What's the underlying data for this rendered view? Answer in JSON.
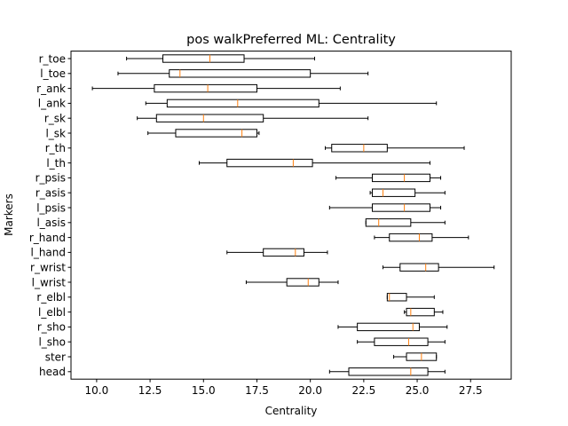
{
  "chart_data": {
    "type": "boxplot",
    "orientation": "horizontal",
    "title": "pos walkPreferred ML: Centrality",
    "xlabel": "Centrality",
    "ylabel": "Markers",
    "xlim": [
      8.8,
      29.4
    ],
    "xticks": [
      "10.0",
      "12.5",
      "15.0",
      "17.5",
      "20.0",
      "22.5",
      "25.0",
      "27.5"
    ],
    "grid": false,
    "box_color": "#000000",
    "median_color": "#ff7f0e",
    "categories": [
      "head",
      "ster",
      "l_sho",
      "r_sho",
      "l_elbl",
      "r_elbl",
      "l_wrist",
      "r_wrist",
      "l_hand",
      "r_hand",
      "l_asis",
      "l_psis",
      "r_asis",
      "r_psis",
      "l_th",
      "r_th",
      "l_sk",
      "r_sk",
      "l_ank",
      "r_ank",
      "l_toe",
      "r_toe"
    ],
    "series": [
      {
        "category": "head",
        "whislo": 20.9,
        "q1": 21.8,
        "med": 24.7,
        "q3": 25.5,
        "whishi": 26.3
      },
      {
        "category": "ster",
        "whislo": 23.9,
        "q1": 24.5,
        "med": 25.2,
        "q3": 25.9,
        "whishi": 25.9
      },
      {
        "category": "l_sho",
        "whislo": 22.2,
        "q1": 23.0,
        "med": 24.6,
        "q3": 25.5,
        "whishi": 26.3
      },
      {
        "category": "r_sho",
        "whislo": 21.3,
        "q1": 22.2,
        "med": 24.8,
        "q3": 25.1,
        "whishi": 26.4
      },
      {
        "category": "l_elbl",
        "whislo": 24.4,
        "q1": 24.5,
        "med": 24.7,
        "q3": 25.8,
        "whishi": 26.2
      },
      {
        "category": "r_elbl",
        "whislo": 23.6,
        "q1": 23.6,
        "med": 23.7,
        "q3": 24.5,
        "whishi": 25.8
      },
      {
        "category": "l_wrist",
        "whislo": 17.0,
        "q1": 18.9,
        "med": 19.9,
        "q3": 20.4,
        "whishi": 21.3
      },
      {
        "category": "r_wrist",
        "whislo": 23.4,
        "q1": 24.2,
        "med": 25.4,
        "q3": 26.0,
        "whishi": 28.6
      },
      {
        "category": "l_hand",
        "whislo": 16.1,
        "q1": 17.8,
        "med": 19.3,
        "q3": 19.7,
        "whishi": 20.8
      },
      {
        "category": "r_hand",
        "whislo": 23.0,
        "q1": 23.7,
        "med": 25.1,
        "q3": 25.7,
        "whishi": 27.4
      },
      {
        "category": "l_asis",
        "whislo": 22.6,
        "q1": 22.6,
        "med": 23.2,
        "q3": 24.7,
        "whishi": 26.3
      },
      {
        "category": "l_psis",
        "whislo": 20.9,
        "q1": 22.9,
        "med": 24.4,
        "q3": 25.6,
        "whishi": 26.1
      },
      {
        "category": "r_asis",
        "whislo": 22.8,
        "q1": 22.9,
        "med": 23.4,
        "q3": 24.9,
        "whishi": 26.3
      },
      {
        "category": "r_psis",
        "whislo": 21.2,
        "q1": 22.9,
        "med": 24.4,
        "q3": 25.6,
        "whishi": 26.1
      },
      {
        "category": "l_th",
        "whislo": 14.8,
        "q1": 16.1,
        "med": 19.2,
        "q3": 20.1,
        "whishi": 25.6
      },
      {
        "category": "r_th",
        "whislo": 20.7,
        "q1": 21.0,
        "med": 22.5,
        "q3": 23.6,
        "whishi": 27.2
      },
      {
        "category": "l_sk",
        "whislo": 12.4,
        "q1": 13.7,
        "med": 16.8,
        "q3": 17.5,
        "whishi": 17.6
      },
      {
        "category": "r_sk",
        "whislo": 11.9,
        "q1": 12.8,
        "med": 15.0,
        "q3": 17.8,
        "whishi": 22.7
      },
      {
        "category": "l_ank",
        "whislo": 12.3,
        "q1": 13.3,
        "med": 16.6,
        "q3": 20.4,
        "whishi": 25.9
      },
      {
        "category": "r_ank",
        "whislo": 9.8,
        "q1": 12.7,
        "med": 15.2,
        "q3": 17.5,
        "whishi": 21.4
      },
      {
        "category": "l_toe",
        "whislo": 11.0,
        "q1": 13.4,
        "med": 13.9,
        "q3": 20.0,
        "whishi": 22.7
      },
      {
        "category": "r_toe",
        "whislo": 11.4,
        "q1": 13.1,
        "med": 15.3,
        "q3": 16.9,
        "whishi": 20.2
      }
    ]
  }
}
